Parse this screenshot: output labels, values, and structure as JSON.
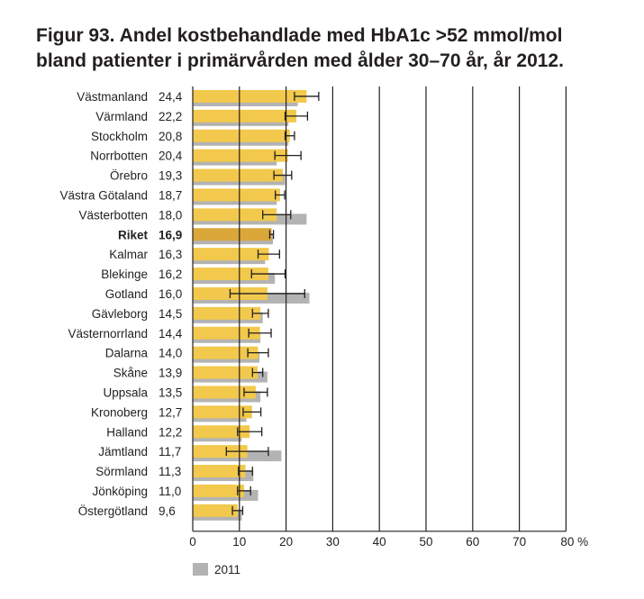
{
  "title_line1": "Figur 93. Andel kostbehandlade med HbA1c >52 mmol/mol",
  "title_line2": "bland patienter i primärvården med ålder 30–70 år, år 2012.",
  "chart_data": {
    "type": "bar",
    "orientation": "horizontal",
    "xlim": [
      0,
      80
    ],
    "xticks": [
      "0",
      "10",
      "20",
      "30",
      "40",
      "50",
      "60",
      "70",
      "80 %"
    ],
    "grid": true,
    "legend_position": "bottom-left",
    "colors": {
      "2012": "#f2c94c",
      "riket": "#d9a73a",
      "2011": "#b3b3b3",
      "error": "#231f20",
      "grid": "#231f20"
    },
    "series": [
      {
        "name": "",
        "key": "2012"
      },
      {
        "name": "2011",
        "key": "2011"
      }
    ],
    "rows": [
      {
        "region": "Västmanland",
        "label": "24,4",
        "v2012": 24.4,
        "v2011": 22.5,
        "err": [
          21.8,
          27.0
        ]
      },
      {
        "region": "Värmland",
        "label": "22,2",
        "v2012": 22.2,
        "v2011": 20.5,
        "err": [
          19.8,
          24.6
        ]
      },
      {
        "region": "Stockholm",
        "label": "20,8",
        "v2012": 20.8,
        "v2011": 20.5,
        "err": [
          19.8,
          21.8
        ]
      },
      {
        "region": "Norrbotten",
        "label": "20,4",
        "v2012": 20.4,
        "v2011": 18.0,
        "err": [
          17.6,
          23.2
        ]
      },
      {
        "region": "Örebro",
        "label": "19,3",
        "v2012": 19.3,
        "v2011": 19.8,
        "err": [
          17.4,
          21.2
        ]
      },
      {
        "region": "Västra Götaland",
        "label": "18,7",
        "v2012": 18.7,
        "v2011": 18.0,
        "err": [
          17.7,
          19.7
        ]
      },
      {
        "region": "Västerbotten",
        "label": "18,0",
        "v2012": 18.0,
        "v2011": 24.4,
        "err": [
          15.0,
          21.0
        ]
      },
      {
        "region": "Riket",
        "label": "16,9",
        "v2012": 16.9,
        "v2011": 17.2,
        "err": [
          16.5,
          17.3
        ],
        "highlight": true
      },
      {
        "region": "Kalmar",
        "label": "16,3",
        "v2012": 16.3,
        "v2011": 15.5,
        "err": [
          14.0,
          18.6
        ]
      },
      {
        "region": "Blekinge",
        "label": "16,2",
        "v2012": 16.2,
        "v2011": 17.6,
        "err": [
          12.6,
          19.8
        ]
      },
      {
        "region": "Gotland",
        "label": "16,0",
        "v2012": 16.0,
        "v2011": 25.0,
        "err": [
          8.0,
          24.0
        ]
      },
      {
        "region": "Gävleborg",
        "label": "14,5",
        "v2012": 14.5,
        "v2011": 15.0,
        "err": [
          12.8,
          16.2
        ]
      },
      {
        "region": "Västernorrland",
        "label": "14,4",
        "v2012": 14.4,
        "v2011": 14.5,
        "err": [
          12.0,
          16.8
        ]
      },
      {
        "region": "Dalarna",
        "label": "14,0",
        "v2012": 14.0,
        "v2011": 14.3,
        "err": [
          11.8,
          16.2
        ]
      },
      {
        "region": "Skåne",
        "label": "13,9",
        "v2012": 13.9,
        "v2011": 16.0,
        "err": [
          12.8,
          15.0
        ]
      },
      {
        "region": "Uppsala",
        "label": "13,5",
        "v2012": 13.5,
        "v2011": 14.5,
        "err": [
          11.0,
          16.0
        ]
      },
      {
        "region": "Kronoberg",
        "label": "12,7",
        "v2012": 12.7,
        "v2011": 11.5,
        "err": [
          10.8,
          14.6
        ]
      },
      {
        "region": "Halland",
        "label": "12,2",
        "v2012": 12.2,
        "v2011": 10.5,
        "err": [
          9.6,
          14.8
        ]
      },
      {
        "region": "Jämtland",
        "label": "11,7",
        "v2012": 11.7,
        "v2011": 19.0,
        "err": [
          7.2,
          16.2
        ]
      },
      {
        "region": "Sörmland",
        "label": "11,3",
        "v2012": 11.3,
        "v2011": 13.0,
        "err": [
          9.8,
          12.8
        ]
      },
      {
        "region": "Jönköping",
        "label": "11,0",
        "v2012": 11.0,
        "v2011": 14.0,
        "err": [
          9.6,
          12.4
        ]
      },
      {
        "region": "Östergötland",
        "label": "9,6",
        "v2012": 9.6,
        "v2011": 10.5,
        "err": [
          8.5,
          10.7
        ]
      }
    ]
  }
}
